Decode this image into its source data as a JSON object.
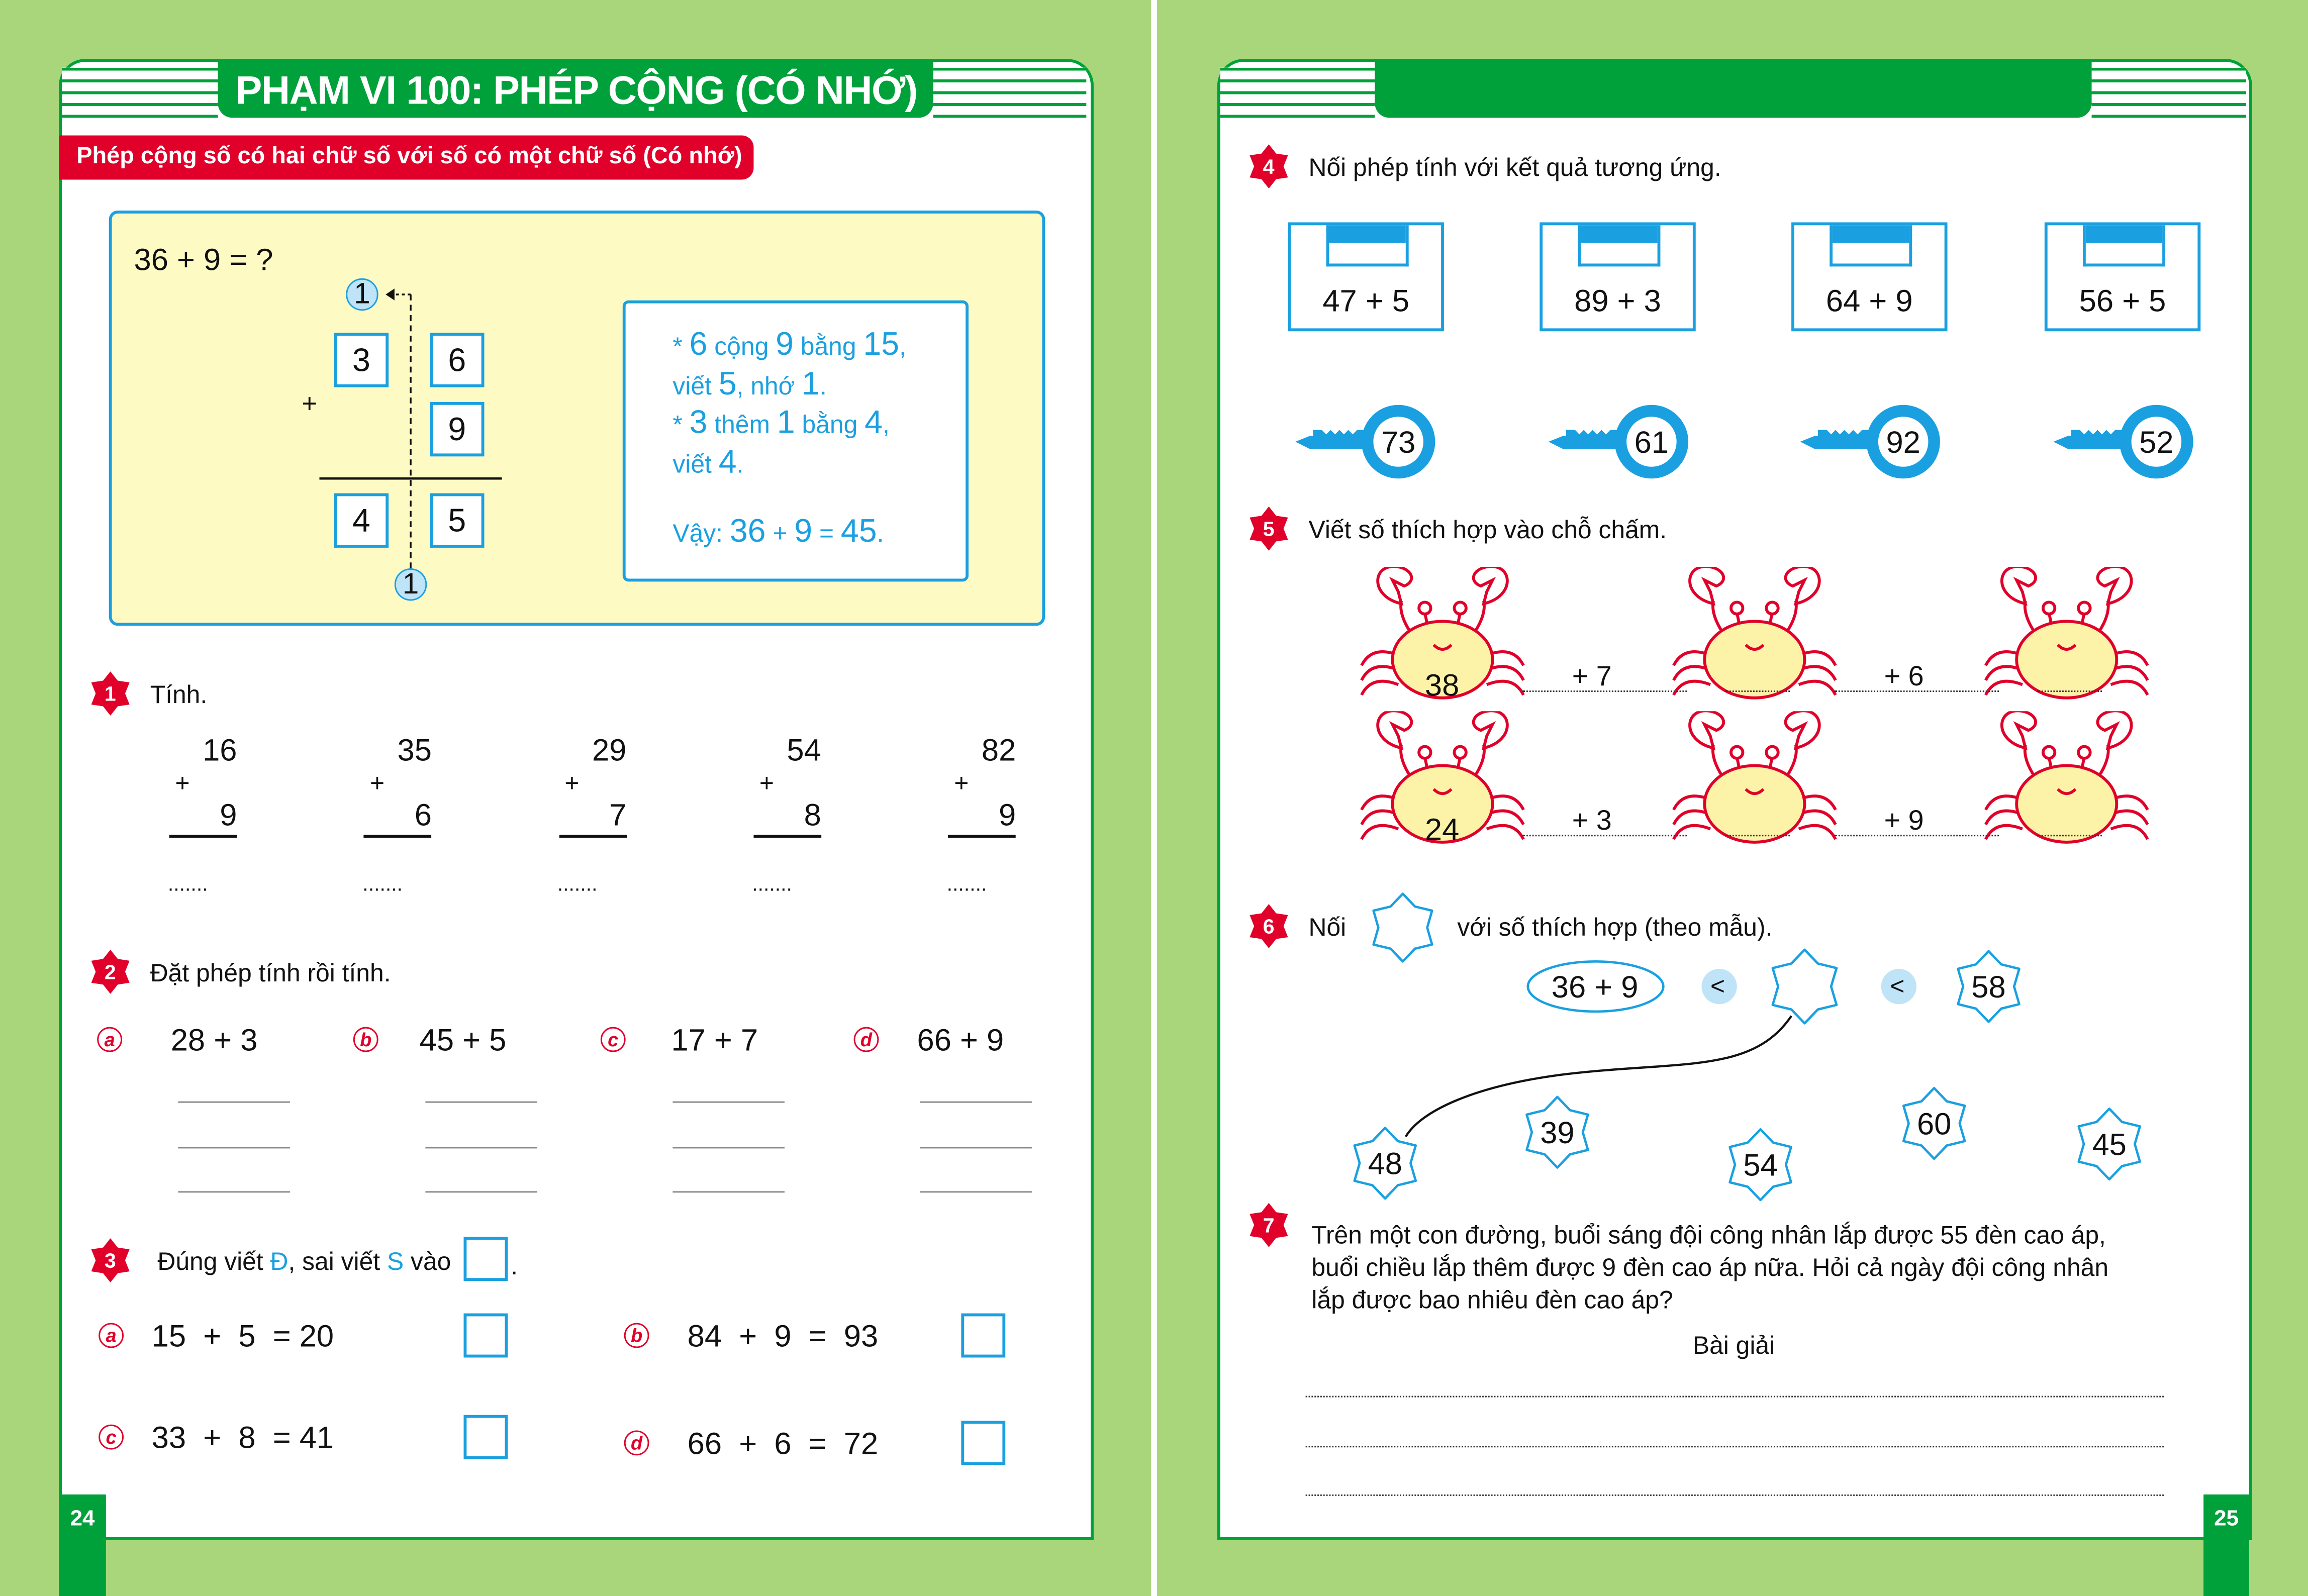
{
  "colors": {
    "green": "#00a13a",
    "background_green": "#a9d67a",
    "red": "#e0002a",
    "blue": "#1aa0e0",
    "light_blue": "#bfe3f7",
    "yellow": "#fdfac4",
    "crab_body": "#fdf3a8"
  },
  "left_page": {
    "title": "PHẠM VI 100: PHÉP CỘNG (CÓ NHỚ)",
    "subtitle": "Phép cộng số có hai chữ số với số có một chữ số (Có nhớ)",
    "example": {
      "question": "36 + 9 = ?",
      "carry_top": "1",
      "carry_bottom": "1",
      "plus": "+",
      "top_digits": [
        "3",
        "6"
      ],
      "added_digit": "9",
      "result_digits": [
        "4",
        "5"
      ],
      "explanation": [
        "* 6 cộng 9 bằng 15,",
        "viết 5, nhớ 1.",
        "* 3 thêm 1 bằng 4,",
        "viết 4.",
        "Vậy: 36 + 9 = 45."
      ]
    },
    "exercise1": {
      "number": "1",
      "label": "Tính.",
      "problems": [
        {
          "a": "16",
          "b": "9"
        },
        {
          "a": "35",
          "b": "6"
        },
        {
          "a": "29",
          "b": "7"
        },
        {
          "a": "54",
          "b": "8"
        },
        {
          "a": "82",
          "b": "9"
        }
      ],
      "plus": "+",
      "answer_dots": "......."
    },
    "exercise2": {
      "number": "2",
      "label": "Đặt phép tính rồi tính.",
      "items": [
        {
          "letter": "a",
          "expr": "28 + 3"
        },
        {
          "letter": "b",
          "expr": "45 + 5"
        },
        {
          "letter": "c",
          "expr": "17 + 7"
        },
        {
          "letter": "d",
          "expr": "66 + 9"
        }
      ]
    },
    "exercise3": {
      "number": "3",
      "label_start": "Đúng viết ",
      "d": "Đ",
      "label_mid": ", sai viết ",
      "s": "S",
      "label_end": " vào",
      "period": ".",
      "items": [
        {
          "letter": "a",
          "expr": "15  +  5  = 20"
        },
        {
          "letter": "b",
          "expr": "84  +  9  =  93"
        },
        {
          "letter": "c",
          "expr": "33  +  8  = 41"
        },
        {
          "letter": "d",
          "expr": "66  +  6  =  72"
        }
      ]
    },
    "page_number": "24"
  },
  "right_page": {
    "exercise4": {
      "number": "4",
      "label": "Nối phép tính với kết quả tương ứng.",
      "expressions": [
        "47 + 5",
        "89 + 3",
        "64 + 9",
        "56 + 5"
      ],
      "keys": [
        "73",
        "61",
        "92",
        "52"
      ]
    },
    "exercise5": {
      "number": "5",
      "label": "Viết số thích hợp vào chỗ chấm.",
      "rows": [
        {
          "start": "38",
          "ops": [
            "+ 7",
            "+ 6"
          ]
        },
        {
          "start": "24",
          "ops": [
            "+ 3",
            "+ 9"
          ]
        }
      ]
    },
    "exercise6": {
      "number": "6",
      "label_before": "Nối",
      "label_after": "với số thích hợp (theo mẫu).",
      "expression": "36 + 9",
      "less_than": "<",
      "upper_bound": "58",
      "stars": [
        "48",
        "39",
        "54",
        "60",
        "45"
      ]
    },
    "exercise7": {
      "number": "7",
      "text": [
        "Trên một con đường, buổi sáng đội công nhân lắp được 55 đèn cao áp,",
        "buổi chiều lắp thêm được 9 đèn cao áp nữa. Hỏi cả ngày đội công nhân",
        "lắp được bao nhiêu đèn cao áp?"
      ],
      "solution_heading": "Bài giải"
    },
    "page_number": "25"
  }
}
